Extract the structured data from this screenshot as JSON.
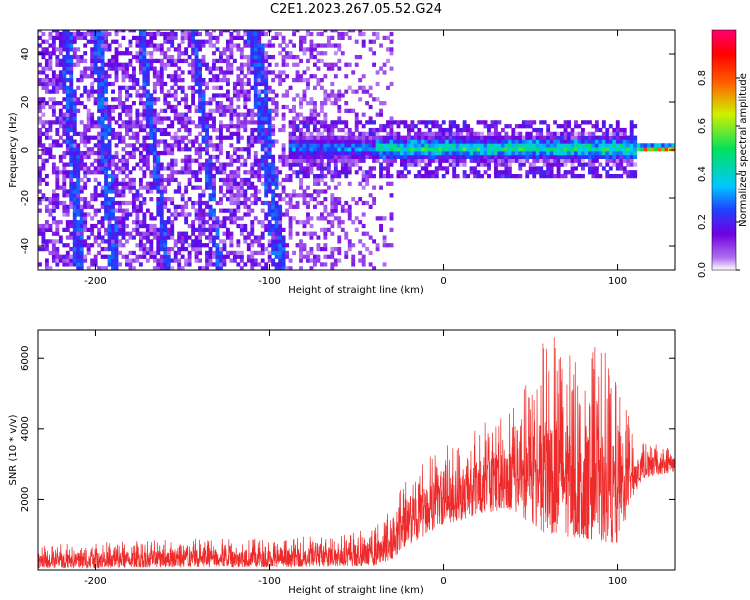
{
  "title": "C2E1.2023.267.05.52.G24",
  "chart_data": [
    {
      "type": "heatmap",
      "xlabel": "Height of straight line (km)",
      "ylabel": "Frequency (Hz)",
      "xlim": [
        -233,
        133
      ],
      "ylim": [
        -50,
        50
      ],
      "xticks": [
        -200,
        -100,
        0,
        100
      ],
      "yticks": [
        -40,
        -20,
        0,
        20,
        40
      ],
      "grid": false,
      "colorbar": {
        "label": "Normalized spectral amplitude",
        "range": [
          0,
          1
        ],
        "ticks": [
          0.0,
          0.2,
          0.4,
          0.6,
          0.8
        ],
        "colormap": "white-purple-blue-cyan-green-yellow-red-magenta",
        "colors": [
          "#ffffff",
          "#b070f0",
          "#7000e0",
          "#2040ff",
          "#00c8ff",
          "#00e060",
          "#d0f000",
          "#ff6000",
          "#ff0000",
          "#ff0070"
        ]
      },
      "features": {
        "carrier_frequency_hz": 0,
        "carrier_amplitude_max": 1.0,
        "diagonal_streaks_start_km": [
          -215,
          -190,
          -175,
          -140,
          -100
        ]
      }
    },
    {
      "type": "line",
      "xlabel": "Height of straight line (km)",
      "ylabel": "SNR (10 * v/v)",
      "xlim": [
        -233,
        133
      ],
      "ylim": [
        0,
        6800
      ],
      "xticks": [
        -200,
        -100,
        0,
        100
      ],
      "yticks": [
        2000,
        4000,
        6000
      ],
      "grid": false,
      "color": "#ee2b2b",
      "envelope": {
        "x": [
          -233,
          -200,
          -150,
          -100,
          -60,
          -40,
          -30,
          -20,
          -10,
          0,
          10,
          20,
          40,
          50,
          60,
          80,
          90,
          100,
          108,
          115,
          133
        ],
        "low": [
          50,
          60,
          80,
          80,
          100,
          120,
          300,
          700,
          1000,
          1300,
          1400,
          1600,
          1700,
          1300,
          1000,
          900,
          800,
          700,
          2000,
          2600,
          2800
        ],
        "high": [
          700,
          800,
          900,
          900,
          1000,
          1200,
          1800,
          3000,
          3300,
          3500,
          3700,
          4200,
          4800,
          5500,
          6800,
          5800,
          6600,
          5200,
          4200,
          3600,
          3500
        ],
        "peak": 6800
      }
    }
  ]
}
